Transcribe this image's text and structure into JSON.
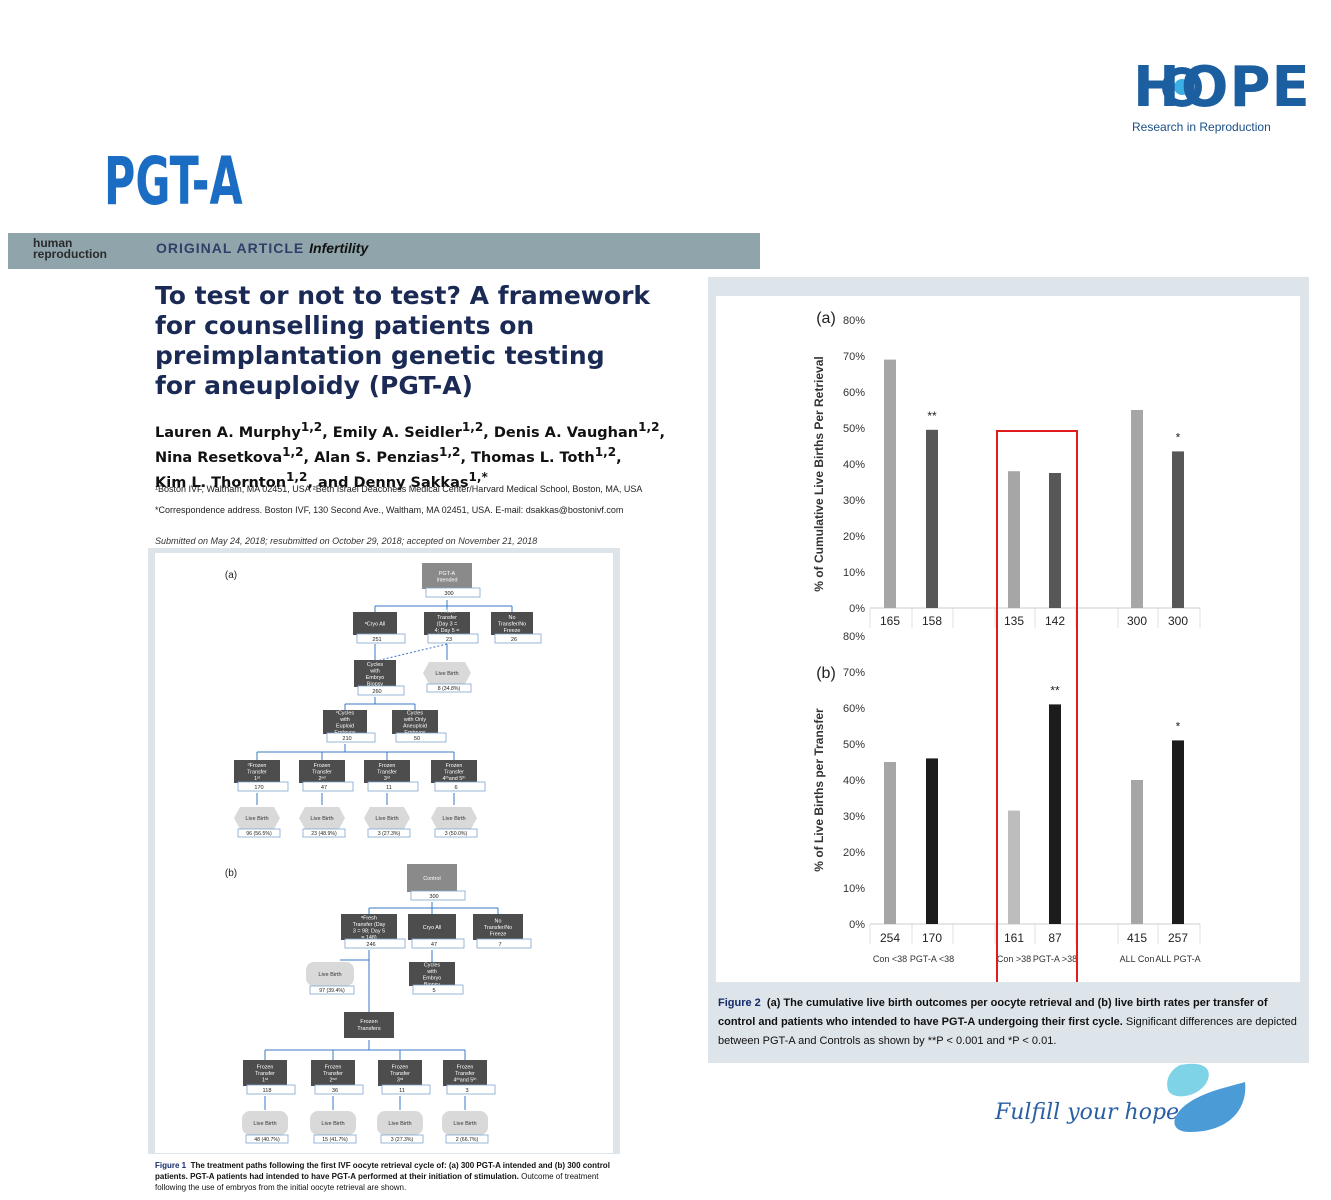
{
  "logo": {
    "title": "HOPE",
    "subtitle": "Research in Reproduction"
  },
  "heading": "PGT-A",
  "journal": {
    "name_line1": "human",
    "name_line2": "reproduction",
    "article_type": "ORIGINAL ARTICLE",
    "section": "Infertility"
  },
  "article": {
    "title_lines": [
      "To test or not to test? A framework",
      "for counselling patients on",
      "preimplantation genetic testing",
      "for aneuploidy (PGT-A)"
    ],
    "authors": [
      {
        "name": "Lauren A. Murphy",
        "sup": "1,2"
      },
      {
        "name": "Emily A. Seidler",
        "sup": "1,2"
      },
      {
        "name": "Denis A. Vaughan",
        "sup": "1,2"
      },
      {
        "name": "Nina Resetkova",
        "sup": "1,2"
      },
      {
        "name": "Alan S. Penzias",
        "sup": "1,2"
      },
      {
        "name": "Thomas L. Toth",
        "sup": "1,2"
      },
      {
        "name": "Kim L. Thornton",
        "sup": "1,2"
      },
      {
        "name": "and Denny Sakkas",
        "sup": "1,*"
      }
    ],
    "affiliations": "¹Boston IVF, Waltham, MA 02451, USA ²Beth Israel Deaconess Medical Center/Harvard Medical School, Boston, MA, USA",
    "correspondence": "*Correspondence address. Boston IVF, 130 Second Ave., Waltham, MA 02451, USA. E-mail: dsakkas@bostonivf.com",
    "submitted": "Submitted on May 24, 2018; resubmitted on October 29, 2018; accepted on November 21, 2018"
  },
  "figure1": {
    "panel_a": {
      "label": "(a)",
      "root": {
        "title": "PGT-A Intended",
        "value": "300"
      },
      "level1": [
        {
          "title": "ᵃCryo All",
          "value": "251"
        },
        {
          "title": "ᵇFresh Transfer (Day 3 = 4; Day 5 = 19)",
          "value": "23"
        },
        {
          "title": "No Transfer/No Freeze",
          "value": "26"
        }
      ],
      "biopsy": {
        "title": "Cycles with Embryo Biopsy",
        "value": "260"
      },
      "fresh_live_birth": {
        "title": "Live Birth",
        "value": "8 (34.8%)"
      },
      "euploid": {
        "title": "ᶜCycles with Euploid Embryos",
        "value": "210"
      },
      "aneuploid": {
        "title": "Cycles with Only Aneuploid Embryos",
        "value": "50"
      },
      "transfers": [
        {
          "title": "ᵈFrozen Transfer 1ˢᵗ",
          "value": "170",
          "live_birth": "96 (56.5%)"
        },
        {
          "title": "Frozen Transfer 2ⁿᵈ",
          "value": "47",
          "live_birth": "23 (48.9%)"
        },
        {
          "title": "Frozen Transfer 3ʳᵈ",
          "value": "11",
          "live_birth": "3 (27.3%)"
        },
        {
          "title": "Frozen Transfer 4ᵗʰand 5ᵗʰ",
          "value": "6",
          "live_birth": "3 (50.0%)"
        }
      ],
      "live_birth_label": "Live Birth"
    },
    "panel_b": {
      "label": "(b)",
      "root": {
        "title": "Control",
        "value": "300"
      },
      "level1": [
        {
          "title": "ᵃFresh Transfer (Day 3 = 98; Day 5 = 148)",
          "value": "246"
        },
        {
          "title": "Cryo All",
          "value": "47"
        },
        {
          "title": "No Transfer/No Freeze",
          "value": "7"
        }
      ],
      "fresh_live_birth": {
        "title": "Live Birth",
        "value": "97 (39.4%)"
      },
      "biopsy": {
        "title": "Cycles with Embryo Biopsy",
        "value": "5"
      },
      "frozen": {
        "title": "Frozen Transfers"
      },
      "transfers": [
        {
          "title": "Frozen Transfer 1ˢᵗ",
          "value": "118",
          "live_birth": "48 (40.7%)"
        },
        {
          "title": "Frozen Transfer 2ⁿᵈ",
          "value": "36",
          "live_birth": "15 (41.7%)"
        },
        {
          "title": "Frozen Transfer 3ʳᵈ",
          "value": "11",
          "live_birth": "3 (27.3%)"
        },
        {
          "title": "Frozen Transfer 4ᵗʰand 5ᵗʰ",
          "value": "3",
          "live_birth": "2 (66.7%)"
        }
      ],
      "live_birth_label": "Live Birth"
    },
    "caption": {
      "label": "Figure 1",
      "bold": "The treatment paths following the first IVF oocyte retrieval cycle of: (a) 300 PGT-A intended and (b) 300 control patients. PGT-A patients had intended to have PGT-A performed at their initiation of stimulation.",
      "rest": "Outcome of treatment following the use of embryos from the initial oocyte retrieval are shown."
    }
  },
  "chart_data": [
    {
      "type": "bar",
      "panel": "(a)",
      "ylabel": "% of Cumulative Live Births Per Retrieval",
      "ylim": [
        0,
        80
      ],
      "yticks": [
        "0%",
        "10%",
        "20%",
        "30%",
        "40%",
        "50%",
        "60%",
        "70%",
        "80%"
      ],
      "bars": [
        {
          "value": 69,
          "n": "165",
          "color": "#a6a6a6",
          "mark": ""
        },
        {
          "value": 49.5,
          "n": "158",
          "color": "#575757",
          "mark": "**"
        },
        {
          "value": 38,
          "n": "135",
          "color": "#a6a6a6",
          "mark": ""
        },
        {
          "value": 37.5,
          "n": "142",
          "color": "#575757",
          "mark": ""
        },
        {
          "value": 55,
          "n": "300",
          "color": "#a6a6a6",
          "mark": ""
        },
        {
          "value": 43.5,
          "n": "300",
          "color": "#575757",
          "mark": "*"
        }
      ]
    },
    {
      "type": "bar",
      "panel": "(b)",
      "ylabel": "% of Live Births per Transfer",
      "ylim": [
        0,
        80
      ],
      "yticks": [
        "0%",
        "10%",
        "20%",
        "30%",
        "40%",
        "50%",
        "60%",
        "70%",
        "80%"
      ],
      "bars": [
        {
          "value": 45,
          "n": "254",
          "color": "#a6a6a6",
          "mark": ""
        },
        {
          "value": 46,
          "n": "170",
          "color": "#1c1c1c",
          "mark": ""
        },
        {
          "value": 31.5,
          "n": "161",
          "color": "#bdbdbd",
          "mark": ""
        },
        {
          "value": 61,
          "n": "87",
          "color": "#1c1c1c",
          "mark": "**"
        },
        {
          "value": 40,
          "n": "415",
          "color": "#a6a6a6",
          "mark": ""
        },
        {
          "value": 51,
          "n": "257",
          "color": "#1c1c1c",
          "mark": "*"
        }
      ],
      "categories": [
        "Con <38",
        "PGT-A <38",
        "Con >38",
        "PGT-A >38",
        "ALL Con",
        "ALL PGT-A"
      ]
    }
  ],
  "highlight_color": "#e01b1b",
  "figure2": {
    "caption": {
      "label": "Figure 2",
      "bold": "(a) The cumulative live birth outcomes per oocyte retrieval and (b) live birth rates per transfer of control and patients who intended to have PGT-A undergoing their first cycle.",
      "rest": "Significant differences are depicted between PGT-A and Controls as shown by **P < 0.001 and *P < 0.01."
    }
  },
  "tagline": "Fulfill your hope"
}
